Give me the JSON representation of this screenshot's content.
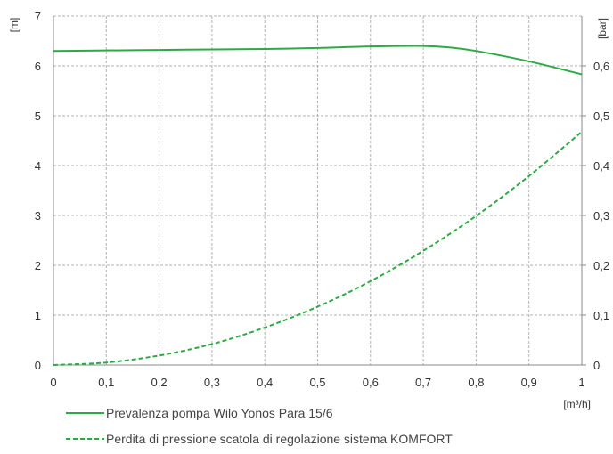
{
  "chart_data": {
    "type": "line",
    "title": "",
    "xlabel": "[m³/h]",
    "ylabel": "[m]",
    "y2label": "[bar]",
    "xlim": [
      0,
      1
    ],
    "ylim": [
      0,
      7
    ],
    "y2lim": [
      0,
      0.7
    ],
    "x_ticks": [
      "0",
      "0,1",
      "0,2",
      "0,3",
      "0,4",
      "0,5",
      "0,6",
      "0,7",
      "0,8",
      "0,9",
      "1"
    ],
    "y_ticks": [
      "0",
      "1",
      "2",
      "3",
      "4",
      "5",
      "6",
      "7"
    ],
    "y2_ticks": [
      "0",
      "0,1",
      "0,2",
      "0,3",
      "0,4",
      "0,5",
      "0,6"
    ],
    "grid": true,
    "legend_position": "bottom",
    "series": [
      {
        "name": "Prevalenza pompa Wilo Yonos Para 15/6",
        "style": "solid",
        "color": "#2eaa45",
        "x": [
          0,
          0.1,
          0.2,
          0.3,
          0.4,
          0.5,
          0.6,
          0.7,
          0.75,
          0.8,
          0.9,
          1.0
        ],
        "y": [
          6.3,
          6.31,
          6.32,
          6.33,
          6.34,
          6.36,
          6.39,
          6.4,
          6.37,
          6.3,
          6.09,
          5.83
        ]
      },
      {
        "name": "Perdita di pressione scatola di regolazione sistema KOMFORT",
        "style": "dashed",
        "color": "#2eaa45",
        "x": [
          0,
          0.1,
          0.2,
          0.3,
          0.4,
          0.5,
          0.6,
          0.7,
          0.8,
          0.9,
          1.0
        ],
        "y": [
          0,
          0.05,
          0.19,
          0.42,
          0.75,
          1.17,
          1.68,
          2.29,
          2.99,
          3.79,
          4.68
        ]
      }
    ]
  }
}
